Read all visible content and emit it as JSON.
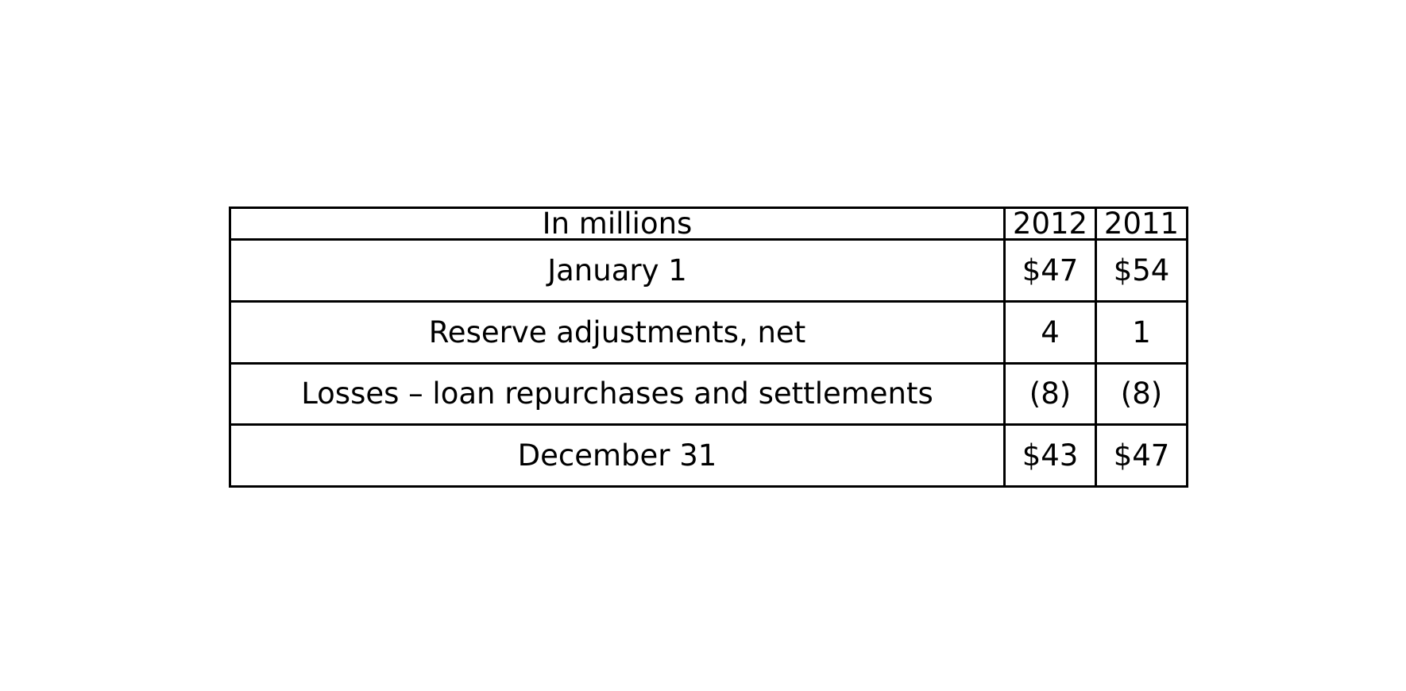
{
  "table": {
    "columns": [
      "In millions",
      "2012",
      "2011"
    ],
    "rows": [
      [
        "January 1",
        "$47",
        "$54"
      ],
      [
        "Reserve adjustments, net",
        "4",
        "1"
      ],
      [
        "Losses – loan repurchases and settlements",
        "(8)",
        "(8)"
      ],
      [
        "December 31",
        "$43",
        "$47"
      ]
    ]
  }
}
